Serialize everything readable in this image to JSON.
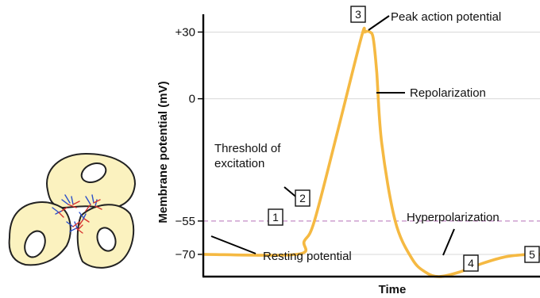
{
  "chart_data": {
    "type": "line",
    "xlabel": "Time",
    "ylabel": "Membrane potential (mV)",
    "y_ticks": [
      "+30",
      "0",
      "−55",
      "−70"
    ],
    "y_tick_values": [
      30,
      0,
      -55,
      -70
    ],
    "ylim": [
      -80,
      38
    ],
    "xlim": [
      0,
      100
    ],
    "x_ticks": [],
    "grid": "horizontal at ticks",
    "threshold": {
      "value": -55,
      "style": "dashed",
      "color": "#c38cc6"
    },
    "series": [
      {
        "color": "#f5b942",
        "x": [
          0,
          27.8,
          30,
          33,
          40,
          47,
          48,
          49.5,
          50.5,
          51.5,
          53,
          57,
          62,
          66,
          70,
          76,
          83,
          90,
          97,
          100
        ],
        "values": [
          -70,
          -70,
          -64,
          -55,
          -14,
          28,
          30,
          30,
          27,
          12,
          -20,
          -55,
          -72,
          -78,
          -80,
          -78,
          -74,
          -71,
          -70,
          -70
        ]
      }
    ],
    "annotations": {
      "peak": "Peak action potential",
      "repolarization": "Repolarization",
      "threshold": "Threshold of\nexcitation",
      "hyperpolarization": "Hyperpolarization",
      "resting": "Resting potential"
    },
    "markers": [
      "1",
      "2",
      "3",
      "4",
      "5"
    ]
  },
  "colors": {
    "curve": "#f5b942",
    "threshold": "#c38cc6",
    "cell_fill": "#fbf2bf",
    "cell_stroke": "#222222",
    "dendrite_blue": "#2b4fc9",
    "dendrite_red": "#d8332f"
  }
}
